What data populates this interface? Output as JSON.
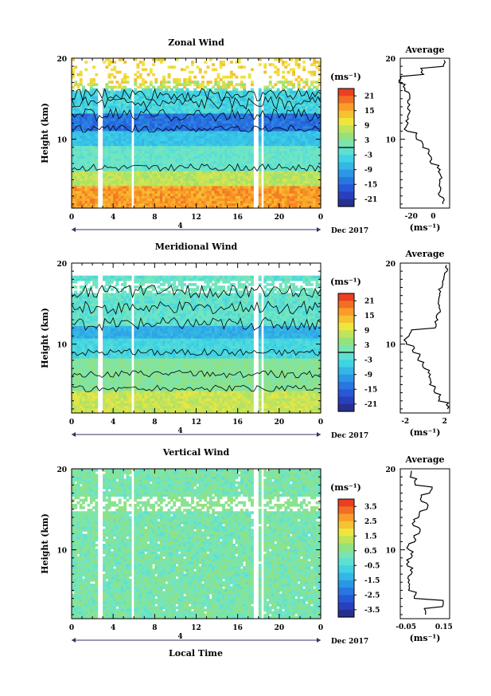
{
  "figure": {
    "date_label": "Dec 2017",
    "xlabel": "Local Time",
    "ylabel": "Height (km)",
    "day_label": "4",
    "unit_label": "(ms⁻¹)",
    "average_title": "Average"
  },
  "chart_data": [
    {
      "type": "heatmap",
      "title": "Zonal Wind",
      "x_ticks": [
        "0",
        "4",
        "8",
        "12",
        "16",
        "20",
        "0"
      ],
      "y_ticks": [
        "20",
        "10"
      ],
      "xlim": [
        0,
        24
      ],
      "ylim": [
        1.5,
        20
      ],
      "colorbar": {
        "label": "(ms⁻¹)",
        "ticks": [
          "21",
          "15",
          "9",
          "3",
          "-3",
          "-9",
          "-15",
          "-21"
        ],
        "range": [
          -24,
          24
        ],
        "zero_line": 0
      },
      "data_gaps_hours": [
        [
          2.4,
          2.9
        ],
        [
          5.6,
          5.9
        ],
        [
          17.5,
          17.9
        ],
        [
          18.1,
          18.3
        ]
      ],
      "profile_height_km": [
        2,
        3,
        4,
        5,
        6,
        7,
        8,
        9,
        10,
        11,
        12,
        13,
        14,
        15,
        16,
        17,
        18,
        19
      ],
      "profile_value": [
        10,
        6,
        6,
        7,
        5,
        -2,
        -4,
        -10,
        -16,
        -25,
        -24,
        -22,
        -22,
        -22,
        -26,
        -30,
        -10,
        10
      ]
    },
    {
      "type": "heatmap",
      "title": "Meridional Wind",
      "x_ticks": [
        "0",
        "4",
        "8",
        "12",
        "16",
        "20",
        "0"
      ],
      "y_ticks": [
        "20",
        "10"
      ],
      "xlim": [
        0,
        24
      ],
      "ylim": [
        1.5,
        20
      ],
      "colorbar": {
        "label": "(ms⁻¹)",
        "ticks": [
          "21",
          "15",
          "9",
          "3",
          "-3",
          "-9",
          "-15",
          "-21"
        ],
        "range": [
          -24,
          24
        ],
        "zero_line": 0
      },
      "data_gaps_hours": [
        [
          2.4,
          2.9
        ],
        [
          5.6,
          5.9
        ],
        [
          17.5,
          17.9
        ],
        [
          18.1,
          18.3
        ]
      ],
      "profile_height_km": [
        2,
        3,
        4,
        5,
        6,
        7,
        8,
        9,
        10,
        11,
        12,
        13,
        14,
        15,
        16,
        17,
        18,
        19
      ],
      "profile_value": [
        2.3,
        1.5,
        1.0,
        0.6,
        0.4,
        -0.2,
        -0.6,
        -1.2,
        -2.0,
        -1.5,
        1.0,
        1.2,
        1.5,
        1.3,
        1.5,
        1.7,
        2.0,
        2.2
      ],
      "profile_x_ticks": [
        "-2",
        "2"
      ],
      "profile_xlim": [
        -2.5,
        2.5
      ]
    },
    {
      "type": "heatmap",
      "title": "Vertical Wind",
      "x_ticks": [
        "0",
        "4",
        "8",
        "12",
        "16",
        "20",
        "0"
      ],
      "y_ticks": [
        "20",
        "10"
      ],
      "xlim": [
        0,
        24
      ],
      "ylim": [
        1.5,
        20
      ],
      "colorbar": {
        "label": "(ms⁻¹)",
        "ticks": [
          "3.5",
          "2.5",
          "1.5",
          "0.5",
          "-0.5",
          "-1.5",
          "-2.5",
          "-3.5"
        ],
        "range": [
          -4,
          4
        ],
        "zero_line": null
      },
      "data_gaps_hours": [
        [
          2.4,
          2.9
        ],
        [
          5.6,
          5.9
        ],
        [
          17.5,
          17.9
        ],
        [
          18.1,
          18.3
        ]
      ],
      "profile_height_km": [
        2,
        3,
        4,
        5,
        6,
        7,
        8,
        9,
        10,
        11,
        12,
        13,
        14,
        15,
        16,
        17,
        18,
        19
      ],
      "profile_value": [
        0.05,
        0.14,
        0.0,
        -0.03,
        -0.04,
        -0.02,
        -0.04,
        -0.02,
        -0.04,
        0.0,
        0.02,
        -0.01,
        0.02,
        0.06,
        0.03,
        0.08,
        0.0,
        -0.02
      ],
      "profile_x_ticks": [
        "-0.05",
        "0.15"
      ],
      "profile_xlim": [
        -0.08,
        0.18
      ]
    }
  ]
}
